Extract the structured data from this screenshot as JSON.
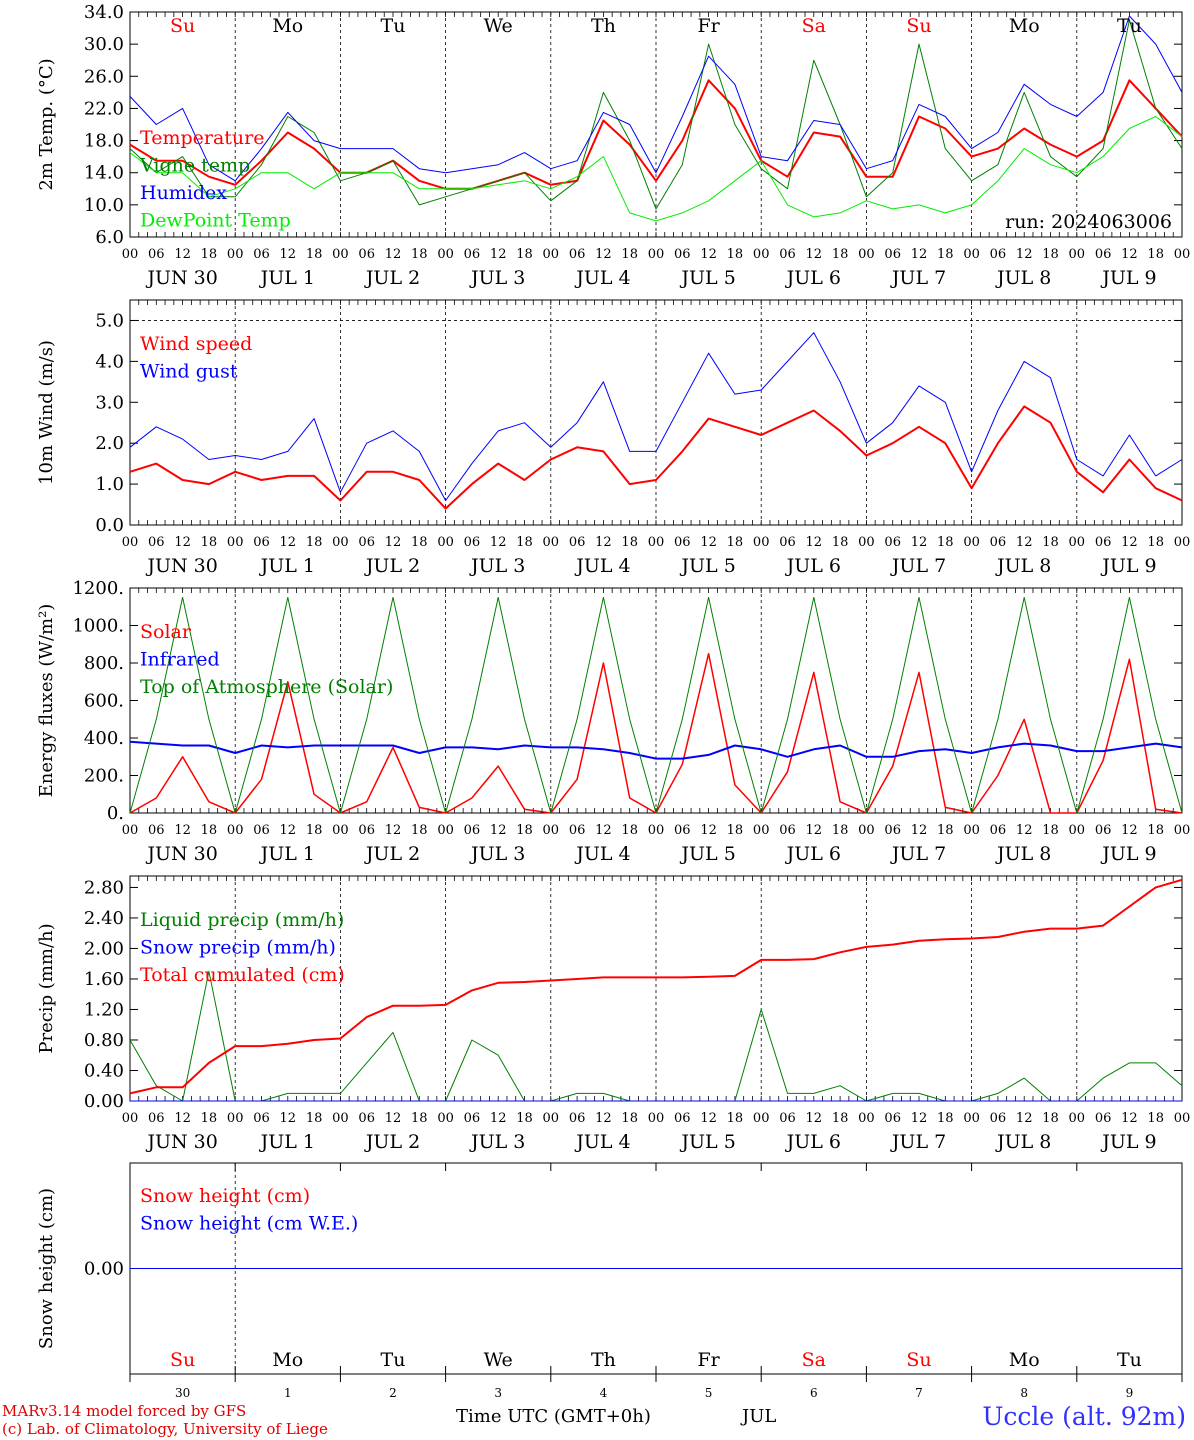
{
  "run_label": "run: 2024063006",
  "station": "Uccle (alt. 92m)",
  "credit_line1": "MARv3.14 model forced by GFS",
  "credit_line2": "(c) Lab. of Climatology, University of Liege",
  "xaxis_title": "Time UTC (GMT+0h)",
  "xaxis_month": "JUL",
  "hour_ticks": [
    "00",
    "06",
    "12",
    "18"
  ],
  "day_labels": [
    "JUN 30",
    "JUL  1",
    "JUL  2",
    "JUL  3",
    "JUL  4",
    "JUL  5",
    "JUL  6",
    "JUL  7",
    "JUL  8",
    "JUL  9"
  ],
  "weekdays": [
    "Su",
    "Mo",
    "Tu",
    "We",
    "Th",
    "Fr",
    "Sa",
    "Su",
    "Mo",
    "Tu"
  ],
  "weekday_colors": [
    "#ff0000",
    "#000000",
    "#000000",
    "#000000",
    "#000000",
    "#000000",
    "#ff0000",
    "#ff0000",
    "#000000",
    "#000000"
  ],
  "day_numbers": [
    "30",
    "1",
    "2",
    "3",
    "4",
    "5",
    "6",
    "7",
    "8",
    "9"
  ],
  "chart_data": [
    {
      "type": "line",
      "ylabel": "2m Temp. (°C)",
      "ylim": [
        6,
        34
      ],
      "yticks": [
        "6.0",
        "10.0",
        "14.0",
        "18.0",
        "22.0",
        "26.0",
        "30.0",
        "34.0"
      ],
      "x_hours": [
        0,
        6,
        12,
        18,
        24,
        30,
        36,
        42,
        48,
        54,
        60,
        66,
        72,
        78,
        84,
        90,
        96,
        102,
        108,
        114,
        120,
        126,
        132,
        138,
        144,
        150,
        156,
        162,
        168,
        174,
        180,
        186,
        192,
        198,
        204,
        210,
        216,
        222,
        228,
        234,
        240
      ],
      "series": [
        {
          "name": "Temperature",
          "color": "#ff0000",
          "width": 2,
          "values": [
            17.5,
            15.5,
            15.5,
            13.5,
            12.5,
            15.5,
            19,
            17,
            14,
            14,
            15.5,
            13,
            12,
            12,
            13,
            14,
            12.5,
            13,
            20.5,
            17.5,
            13,
            18,
            25.5,
            22,
            15.5,
            13.5,
            19,
            18.5,
            13.5,
            13.5,
            21,
            19.5,
            16,
            17,
            19.5,
            17.5,
            16,
            18,
            25.5,
            22,
            18.5
          ]
        },
        {
          "name": "Vigne temp",
          "color": "#008000",
          "width": 1,
          "values": [
            17,
            14,
            16,
            11,
            11,
            15,
            21,
            19,
            13,
            14,
            15.5,
            10,
            11,
            12,
            13,
            14,
            10.5,
            13,
            24,
            18,
            9.5,
            15,
            30,
            20,
            14.5,
            12,
            28,
            20,
            11,
            14,
            30,
            17,
            13,
            15,
            24,
            16,
            13.5,
            17,
            33,
            22,
            17
          ]
        },
        {
          "name": "Humidex",
          "color": "#0000ff",
          "width": 1,
          "values": [
            23.5,
            20,
            22,
            15,
            13,
            17,
            21.5,
            18,
            17,
            17,
            17,
            14.5,
            14,
            14.5,
            15,
            16.5,
            14.5,
            15.5,
            21.5,
            20,
            14,
            21,
            28.5,
            25,
            16,
            15.5,
            20.5,
            20,
            14.5,
            15.5,
            22.5,
            21,
            17,
            19,
            25,
            22.5,
            21,
            24,
            33.5,
            30,
            24
          ]
        },
        {
          "name": "DewPoint Temp",
          "color": "#00ee00",
          "width": 1,
          "values": [
            16.5,
            14,
            14,
            11,
            12,
            14,
            14,
            12,
            14,
            14,
            14,
            12,
            12,
            12,
            12.5,
            13,
            12,
            13.5,
            16,
            9,
            8,
            9,
            10.5,
            13,
            15.5,
            10,
            8.5,
            9,
            10.5,
            9.5,
            10,
            9,
            10,
            13,
            17,
            15,
            14,
            16,
            19.5,
            21,
            18.5
          ]
        }
      ],
      "legend_placement": "left"
    },
    {
      "type": "line",
      "ylabel": "10m Wind (m/s)",
      "ylim": [
        0,
        5.5
      ],
      "yticks": [
        "0.0",
        "1.0",
        "2.0",
        "3.0",
        "4.0",
        "5.0"
      ],
      "ref_line": 5.0,
      "x_hours": [
        0,
        6,
        12,
        18,
        24,
        30,
        36,
        42,
        48,
        54,
        60,
        66,
        72,
        78,
        84,
        90,
        96,
        102,
        108,
        114,
        120,
        126,
        132,
        138,
        144,
        150,
        156,
        162,
        168,
        174,
        180,
        186,
        192,
        198,
        204,
        210,
        216,
        222,
        228,
        234,
        240
      ],
      "series": [
        {
          "name": "Wind speed",
          "color": "#ff0000",
          "width": 2,
          "values": [
            1.3,
            1.5,
            1.1,
            1.0,
            1.3,
            1.1,
            1.2,
            1.2,
            0.6,
            1.3,
            1.3,
            1.1,
            0.4,
            1.0,
            1.5,
            1.1,
            1.6,
            1.9,
            1.8,
            1.0,
            1.1,
            1.8,
            2.6,
            2.4,
            2.2,
            2.5,
            2.8,
            2.3,
            1.7,
            2.0,
            2.4,
            2.0,
            0.9,
            2.0,
            2.9,
            2.5,
            1.3,
            0.8,
            1.6,
            0.9,
            0.6
          ]
        },
        {
          "name": "Wind gust",
          "color": "#0000ff",
          "width": 1,
          "values": [
            1.9,
            2.4,
            2.1,
            1.6,
            1.7,
            1.6,
            1.8,
            2.6,
            0.8,
            2.0,
            2.3,
            1.8,
            0.6,
            1.5,
            2.3,
            2.5,
            1.9,
            2.5,
            3.5,
            1.8,
            1.8,
            3.0,
            4.2,
            3.2,
            3.3,
            4.0,
            4.7,
            3.5,
            2.0,
            2.5,
            3.4,
            3.0,
            1.3,
            2.8,
            4.0,
            3.6,
            1.6,
            1.2,
            2.2,
            1.2,
            1.6
          ]
        }
      ],
      "legend_placement": "top-left"
    },
    {
      "type": "line",
      "ylabel": "Energy fluxes (W/m²)",
      "ylim": [
        0,
        1200
      ],
      "yticks": [
        "0.",
        "200.",
        "400.",
        "600.",
        "800.",
        "1000.",
        "1200."
      ],
      "x_hours": [
        0,
        6,
        12,
        18,
        24,
        30,
        36,
        42,
        48,
        54,
        60,
        66,
        72,
        78,
        84,
        90,
        96,
        102,
        108,
        114,
        120,
        126,
        132,
        138,
        144,
        150,
        156,
        162,
        168,
        174,
        180,
        186,
        192,
        198,
        204,
        210,
        216,
        222,
        228,
        234,
        240
      ],
      "series": [
        {
          "name": "Solar",
          "color": "#ff0000",
          "width": 1.5,
          "values": [
            0,
            80,
            300,
            60,
            0,
            180,
            700,
            100,
            0,
            60,
            350,
            30,
            0,
            80,
            250,
            20,
            0,
            180,
            800,
            80,
            0,
            260,
            850,
            150,
            0,
            220,
            750,
            60,
            0,
            250,
            750,
            30,
            0,
            200,
            500,
            0,
            0,
            280,
            820,
            20,
            0
          ]
        },
        {
          "name": "Infrared",
          "color": "#0000ff",
          "width": 2,
          "values": [
            380,
            370,
            360,
            360,
            320,
            360,
            350,
            360,
            360,
            360,
            360,
            320,
            350,
            350,
            340,
            360,
            350,
            350,
            340,
            320,
            290,
            290,
            310,
            360,
            340,
            300,
            340,
            360,
            300,
            300,
            330,
            340,
            320,
            350,
            370,
            360,
            330,
            330,
            350,
            370,
            350
          ]
        },
        {
          "name": "Top of Atmosphere (Solar)",
          "color": "#008000",
          "width": 1,
          "values": [
            0,
            500,
            1150,
            500,
            0,
            500,
            1150,
            500,
            0,
            500,
            1150,
            500,
            0,
            500,
            1150,
            500,
            0,
            500,
            1150,
            500,
            0,
            500,
            1150,
            500,
            0,
            500,
            1150,
            500,
            0,
            500,
            1150,
            500,
            0,
            500,
            1150,
            500,
            0,
            500,
            1150,
            500,
            0
          ]
        }
      ],
      "legend_placement": "top-left"
    },
    {
      "type": "line",
      "ylabel": "Precip (mm/h)",
      "ylim": [
        0,
        2.95
      ],
      "yticks": [
        "0.00",
        "0.40",
        "0.80",
        "1.20",
        "1.60",
        "2.00",
        "2.40",
        "2.80"
      ],
      "x_hours": [
        0,
        6,
        12,
        18,
        24,
        30,
        36,
        42,
        48,
        54,
        60,
        66,
        72,
        78,
        84,
        90,
        96,
        102,
        108,
        114,
        120,
        126,
        132,
        138,
        144,
        150,
        156,
        162,
        168,
        174,
        180,
        186,
        192,
        198,
        204,
        210,
        216,
        222,
        228,
        234,
        240
      ],
      "series": [
        {
          "name": "Liquid precip (mm/h)",
          "color": "#008000",
          "width": 1,
          "values": [
            0.8,
            0.2,
            0.0,
            1.7,
            0.0,
            0.0,
            0.1,
            0.1,
            0.1,
            0.5,
            0.9,
            0.0,
            0.0,
            0.8,
            0.6,
            0.0,
            0.0,
            0.1,
            0.1,
            0.0,
            0.0,
            0.0,
            0.0,
            0.0,
            1.2,
            0.1,
            0.1,
            0.2,
            0.0,
            0.1,
            0.1,
            0.0,
            0.0,
            0.1,
            0.3,
            0.0,
            0.0,
            0.3,
            0.5,
            0.5,
            0.2
          ]
        },
        {
          "name": "Snow precip (mm/h)",
          "color": "#0000ff",
          "width": 1,
          "values": [
            0,
            0,
            0,
            0,
            0,
            0,
            0,
            0,
            0,
            0,
            0,
            0,
            0,
            0,
            0,
            0,
            0,
            0,
            0,
            0,
            0,
            0,
            0,
            0,
            0,
            0,
            0,
            0,
            0,
            0,
            0,
            0,
            0,
            0,
            0,
            0,
            0,
            0,
            0,
            0,
            0
          ]
        },
        {
          "name": "Total cumulated (cm)",
          "color": "#ff0000",
          "width": 2,
          "values": [
            0.1,
            0.18,
            0.18,
            0.5,
            0.72,
            0.72,
            0.75,
            0.8,
            0.82,
            1.1,
            1.25,
            1.25,
            1.26,
            1.45,
            1.55,
            1.56,
            1.58,
            1.6,
            1.62,
            1.62,
            1.62,
            1.62,
            1.63,
            1.64,
            1.85,
            1.85,
            1.86,
            1.95,
            2.02,
            2.05,
            2.1,
            2.12,
            2.13,
            2.15,
            2.22,
            2.26,
            2.26,
            2.3,
            2.55,
            2.8,
            2.9
          ]
        }
      ],
      "legend_placement": "top-left"
    },
    {
      "type": "line",
      "ylabel": "Snow height (cm)",
      "ylim": [
        -1,
        1
      ],
      "yticks": [
        "0.00"
      ],
      "x_hours": [
        0,
        240
      ],
      "series": [
        {
          "name": "Snow height (cm)",
          "color": "#ff0000",
          "width": 1,
          "values": [
            0,
            0
          ]
        },
        {
          "name": "Snow height (cm W.E.)",
          "color": "#0000ff",
          "width": 1,
          "values": [
            0,
            0
          ]
        }
      ],
      "legend_placement": "top-left"
    }
  ]
}
